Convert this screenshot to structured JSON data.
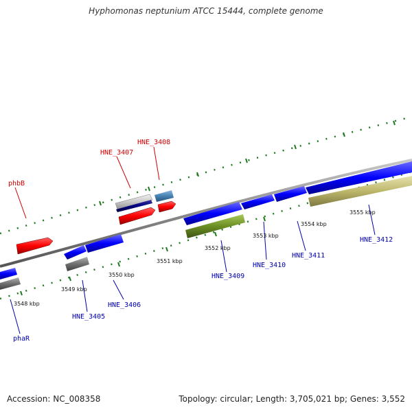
{
  "title": "Hyphomonas neptunium ATCC 15444, complete genome",
  "footer": {
    "accession": "Accession: NC_008358",
    "stats": "Topology: circular; Length: 3,705,021 bp; Genes: 3,552"
  },
  "colors": {
    "forward_label": "#cc0000",
    "reverse_label": "#0000aa",
    "tick": "#1f7a1f",
    "backbone": "#8a8a8a"
  },
  "scale_ticks": [
    "3548 kbp",
    "3549 kbp",
    "3550 kbp",
    "3551 kbp",
    "3552 kbp",
    "3553 kbp",
    "3554 kbp",
    "3555 kbp"
  ],
  "genes": {
    "forward": [
      "phbB",
      "HNE_3407",
      "HNE_3408"
    ],
    "reverse": [
      "phaR",
      "HNE_3405",
      "HNE_3406",
      "HNE_3409",
      "HNE_3410",
      "HNE_3411",
      "HNE_3412"
    ]
  }
}
